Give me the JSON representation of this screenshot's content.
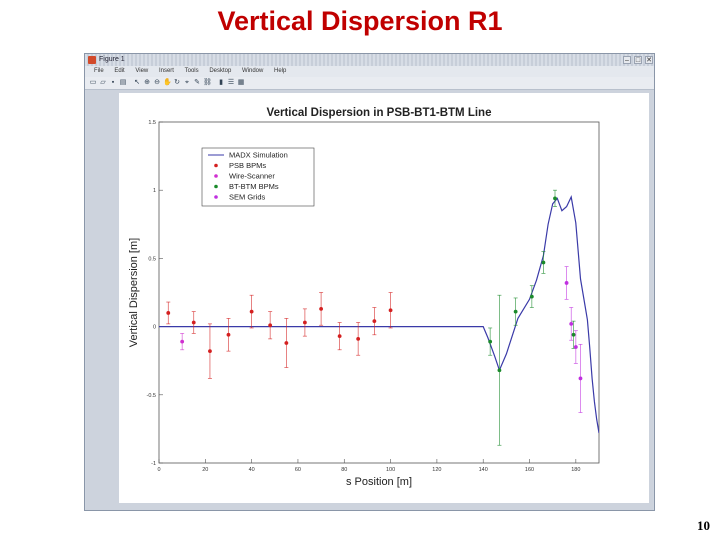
{
  "slide": {
    "title": "Vertical Dispersion R1",
    "page_number": "10"
  },
  "window": {
    "title": "Figure 1",
    "menu": [
      "File",
      "Edit",
      "View",
      "Insert",
      "Tools",
      "Desktop",
      "Window",
      "Help"
    ]
  },
  "icons": [
    "new-file-icon",
    "open-icon",
    "save-icon",
    "print-icon",
    "pointer-icon",
    "zoom-in-icon",
    "zoom-out-icon",
    "pan-icon",
    "rotate-icon",
    "data-cursor-icon",
    "brush-icon",
    "link-icon",
    "colorbar-icon",
    "legend-icon",
    "grid-icon"
  ],
  "chart_data": {
    "type": "scatter",
    "title": "Vertical Dispersion in PSB-BT1-BTM Line",
    "xlabel": "s Position [m]",
    "ylabel": "Vertical Dispersion [m]",
    "xlim": [
      0,
      190
    ],
    "ylim": [
      -1,
      1.5
    ],
    "xticks": [
      "0",
      "20",
      "40",
      "60",
      "80",
      "100",
      "120",
      "140",
      "160",
      "180"
    ],
    "yticks": [
      "-1",
      "-0.5",
      "0",
      "0.5",
      "1",
      "1.5"
    ],
    "xtick_values": [
      0,
      20,
      40,
      60,
      80,
      100,
      120,
      140,
      160,
      180
    ],
    "ytick_values": [
      -1,
      -0.5,
      0,
      0.5,
      1,
      1.5
    ],
    "grid": false,
    "legend_position": "top-left",
    "line": {
      "name": "MADX Simulation",
      "color": "#3a3aa8",
      "x": [
        0,
        140,
        142,
        145,
        147,
        150,
        155,
        160,
        163,
        166,
        168,
        170,
        172,
        174,
        176,
        178,
        180,
        182,
        184,
        185,
        186,
        187,
        188,
        189,
        190
      ],
      "y": [
        0,
        0,
        -0.08,
        -0.22,
        -0.32,
        -0.2,
        0.06,
        0.2,
        0.34,
        0.52,
        0.75,
        0.9,
        0.94,
        0.85,
        0.88,
        0.95,
        0.76,
        0.35,
        0.15,
        0.05,
        -0.15,
        -0.38,
        -0.55,
        -0.68,
        -0.78
      ]
    },
    "series": [
      {
        "name": "PSB BPMs",
        "color": "#d42020",
        "points": [
          [
            4,
            0.1,
            0.08
          ],
          [
            15,
            0.03,
            0.08
          ],
          [
            22,
            -0.18,
            0.2
          ],
          [
            30,
            -0.06,
            0.12
          ],
          [
            40,
            0.11,
            0.12
          ],
          [
            48,
            0.01,
            0.1
          ],
          [
            55,
            -0.12,
            0.18
          ],
          [
            63,
            0.03,
            0.1
          ],
          [
            70,
            0.13,
            0.12
          ],
          [
            78,
            -0.07,
            0.1
          ],
          [
            86,
            -0.09,
            0.12
          ],
          [
            93,
            0.04,
            0.1
          ],
          [
            100,
            0.12,
            0.13
          ]
        ]
      },
      {
        "name": "Wire-Scanner",
        "color": "#d030d0",
        "points": [
          [
            10,
            -0.11,
            0.06
          ]
        ]
      },
      {
        "name": "BT-BTM BPMs",
        "color": "#1a8a2a",
        "points": [
          [
            143,
            -0.11,
            0.1
          ],
          [
            147,
            -0.32,
            0.55
          ],
          [
            154,
            0.11,
            0.1
          ],
          [
            161,
            0.22,
            0.08
          ],
          [
            166,
            0.47,
            0.08
          ],
          [
            171,
            0.94,
            0.06
          ],
          [
            179,
            -0.06,
            0.1
          ]
        ]
      },
      {
        "name": "SEM Grids",
        "color": "#c030e0",
        "points": [
          [
            176,
            0.32,
            0.12
          ],
          [
            178,
            0.02,
            0.12
          ],
          [
            180,
            -0.15,
            0.12
          ],
          [
            182,
            -0.38,
            0.25
          ]
        ]
      }
    ]
  }
}
